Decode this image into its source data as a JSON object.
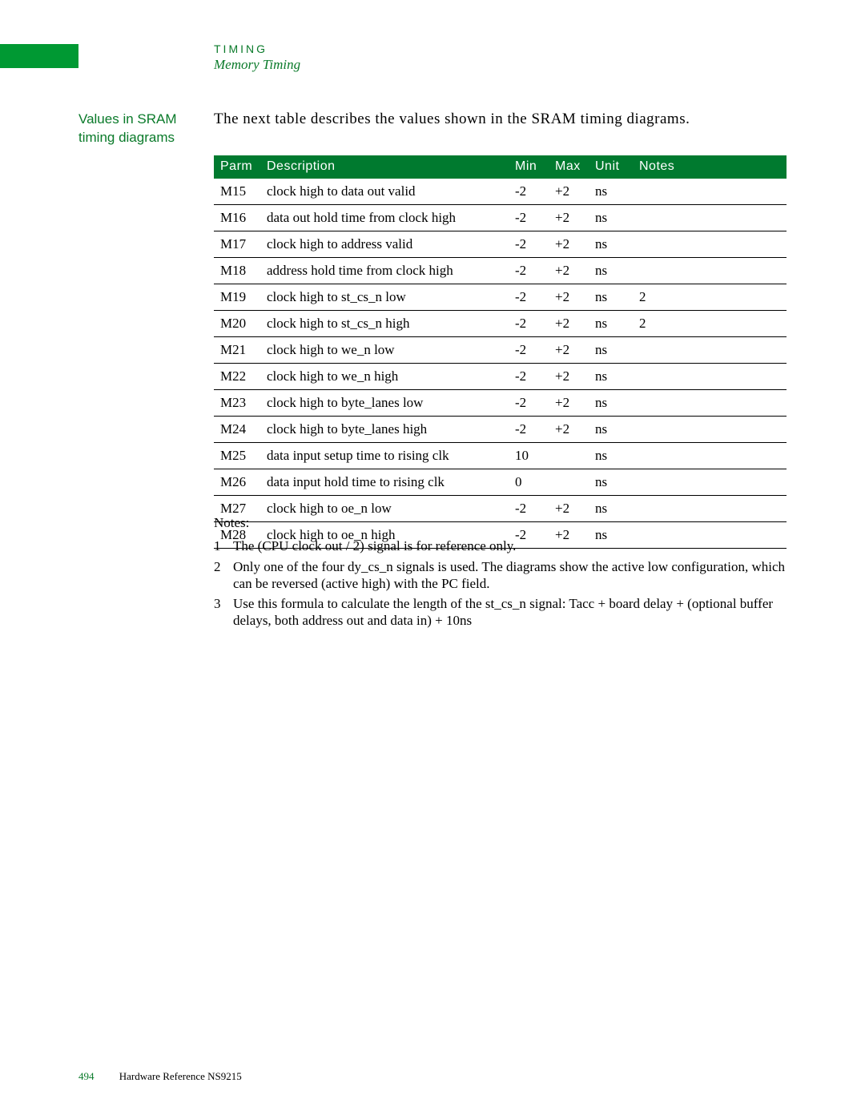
{
  "header": {
    "category": "TIMING",
    "subtitle": "Memory Timing"
  },
  "side_heading": "Values in SRAM timing diagrams",
  "intro_text": "The next table describes the values shown in the SRAM timing diagrams.",
  "table": {
    "columns": [
      "Parm",
      "Description",
      "Min",
      "Max",
      "Unit",
      "Notes"
    ],
    "col_bg": "#007a2f",
    "col_fg": "#ffffff",
    "border_color": "#000000",
    "rows": [
      {
        "parm": "M15",
        "desc": "clock high to data out valid",
        "min": "-2",
        "max": "+2",
        "unit": "ns",
        "notes": ""
      },
      {
        "parm": "M16",
        "desc": "data out hold time from clock high",
        "min": "-2",
        "max": "+2",
        "unit": "ns",
        "notes": ""
      },
      {
        "parm": "M17",
        "desc": "clock high to address valid",
        "min": "-2",
        "max": "+2",
        "unit": "ns",
        "notes": ""
      },
      {
        "parm": "M18",
        "desc": "address hold time from clock high",
        "min": "-2",
        "max": "+2",
        "unit": "ns",
        "notes": ""
      },
      {
        "parm": "M19",
        "desc": "clock high to st_cs_n low",
        "min": "-2",
        "max": "+2",
        "unit": "ns",
        "notes": "2"
      },
      {
        "parm": "M20",
        "desc": "clock high to st_cs_n high",
        "min": "-2",
        "max": "+2",
        "unit": "ns",
        "notes": "2"
      },
      {
        "parm": "M21",
        "desc": "clock high to we_n low",
        "min": "-2",
        "max": "+2",
        "unit": "ns",
        "notes": ""
      },
      {
        "parm": "M22",
        "desc": "clock high to we_n high",
        "min": "-2",
        "max": "+2",
        "unit": "ns",
        "notes": ""
      },
      {
        "parm": "M23",
        "desc": "clock high to byte_lanes low",
        "min": "-2",
        "max": "+2",
        "unit": "ns",
        "notes": ""
      },
      {
        "parm": "M24",
        "desc": "clock high to byte_lanes high",
        "min": "-2",
        "max": "+2",
        "unit": "ns",
        "notes": ""
      },
      {
        "parm": "M25",
        "desc": "data input setup time to rising clk",
        "min": "10",
        "max": "",
        "unit": "ns",
        "notes": ""
      },
      {
        "parm": "M26",
        "desc": "data input hold time to rising clk",
        "min": "0",
        "max": "",
        "unit": "ns",
        "notes": ""
      },
      {
        "parm": "M27",
        "desc": "clock high to oe_n low",
        "min": "-2",
        "max": "+2",
        "unit": "ns",
        "notes": ""
      },
      {
        "parm": "M28",
        "desc": "clock high to oe_n high",
        "min": "-2",
        "max": "+2",
        "unit": "ns",
        "notes": ""
      }
    ]
  },
  "notes": {
    "heading": "Notes:",
    "items": [
      {
        "num": "1",
        "text": "The (CPU clock out / 2) signal is for reference only."
      },
      {
        "num": "2",
        "text": "Only one of the four dy_cs_n signals is used. The diagrams show the active low configuration, which can be reversed (active high) with the PC field."
      },
      {
        "num": "3",
        "text": "Use this formula to calculate the length of the st_cs_n signal: Tacc + board delay + (optional buffer delays, both address out and data in) + 10ns"
      }
    ]
  },
  "footer": {
    "page": "494",
    "doc": "Hardware Reference NS9215"
  },
  "colors": {
    "brand_green": "#0a7a2a",
    "header_bg": "#007a2f",
    "page_bg": "#ffffff"
  }
}
